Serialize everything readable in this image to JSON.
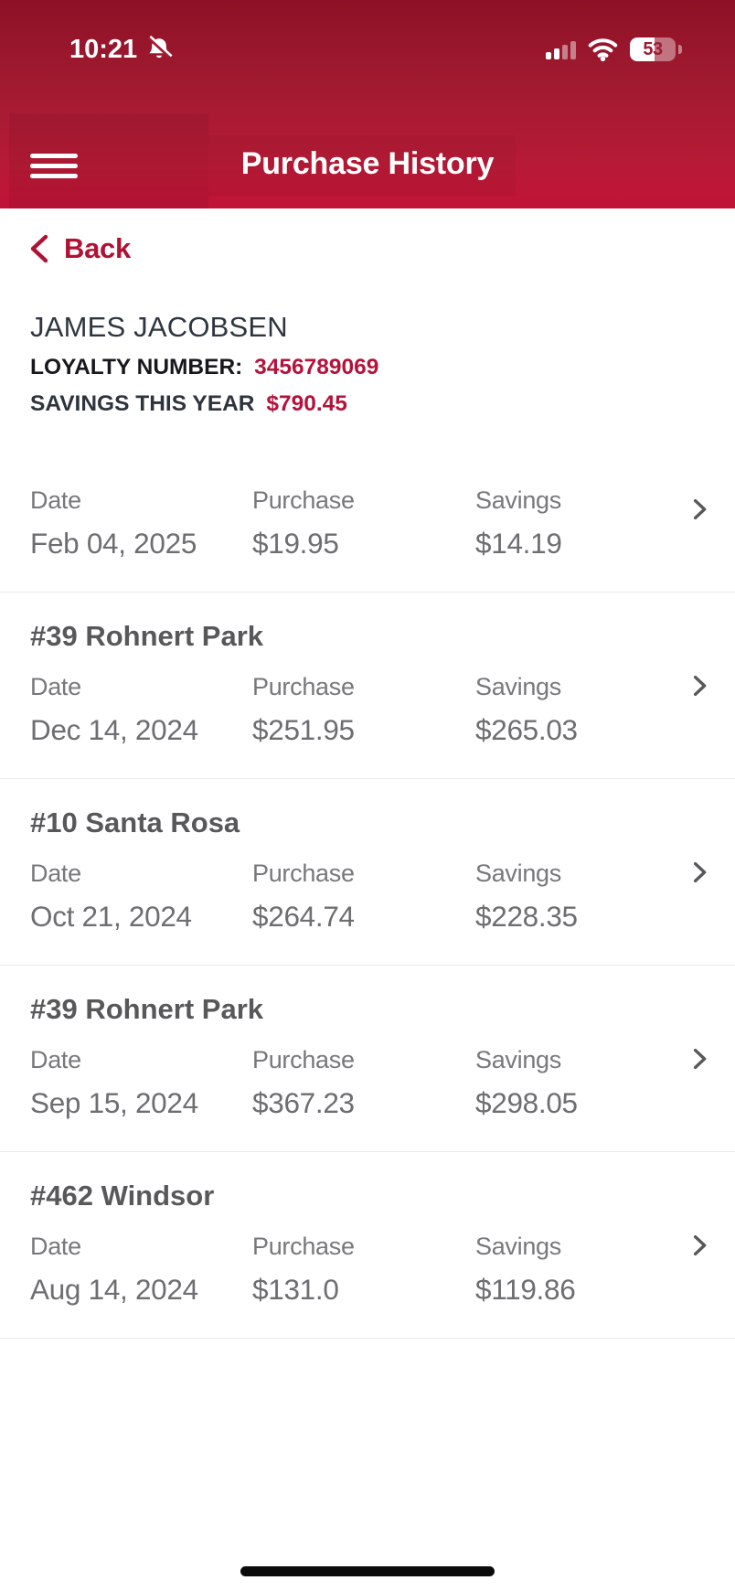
{
  "status_bar": {
    "time": "10:21",
    "battery_percent": "53",
    "battery_level": 53
  },
  "header": {
    "title": "Purchase History"
  },
  "back": {
    "label": "Back"
  },
  "member": {
    "name": "JAMES JACOBSEN",
    "loyalty_label": "LOYALTY NUMBER:",
    "loyalty_number": "3456789069",
    "savings_label": "SAVINGS THIS YEAR",
    "savings_amount": "$790.45"
  },
  "table": {
    "columns": {
      "date": "Date",
      "purchase": "Purchase",
      "savings": "Savings"
    }
  },
  "purchases": [
    {
      "store": "",
      "date": "Feb 04, 2025",
      "purchase": "$19.95",
      "savings": "$14.19"
    },
    {
      "store": "#39 Rohnert Park",
      "date": "Dec 14, 2024",
      "purchase": "$251.95",
      "savings": "$265.03"
    },
    {
      "store": "#10 Santa Rosa",
      "date": "Oct 21, 2024",
      "purchase": "$264.74",
      "savings": "$228.35"
    },
    {
      "store": "#39 Rohnert Park",
      "date": "Sep 15, 2024",
      "purchase": "$367.23",
      "savings": "$298.05"
    },
    {
      "store": "#462 Windsor",
      "date": "Aug 14, 2024",
      "purchase": "$131.0",
      "savings": "$119.86"
    }
  ],
  "colors": {
    "header_gradient_top": "#8d1126",
    "header_gradient_bottom": "#c11336",
    "brand_red": "#b5123b",
    "back_red": "#b01233",
    "text_dark": "#2f3540",
    "text_gray": "#6d6e71",
    "label_gray": "#77787b",
    "store_gray": "#57585a",
    "divider": "#e9e9e9"
  }
}
